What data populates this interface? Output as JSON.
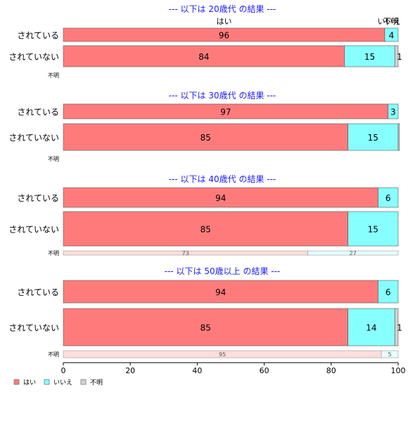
{
  "chart_data": {
    "type": "bar",
    "orientation": "horizontal",
    "stacked": true,
    "xlim": [
      0,
      100
    ],
    "xticks": [
      0,
      20,
      40,
      60,
      80,
      100
    ],
    "grid": false,
    "legend_position": "bottom-left",
    "categories": [
      "はい",
      "いいえ",
      "不明"
    ],
    "colors": {
      "はい": "#ff7b7b",
      "いいえ": "#88ffff",
      "不明": "#d3d3d3"
    },
    "legend": [
      {
        "label": "はい",
        "color": "#ff7b7b"
      },
      {
        "label": "いいえ",
        "color": "#88ffff"
      },
      {
        "label": "不明",
        "color": "#d3d3d3"
      }
    ],
    "column_headers": [
      "はい",
      "いいえ",
      "不明"
    ],
    "panels": [
      {
        "title": "--- 以下は 20歳代 の結果 ---",
        "rows": [
          {
            "label": "されている",
            "values": [
              96,
              4,
              0
            ],
            "labels": [
              "96",
              "4",
              ""
            ]
          },
          {
            "label": "されていない",
            "values": [
              84,
              15,
              1
            ],
            "labels": [
              "84",
              "15",
              "1"
            ]
          },
          {
            "label": "不明",
            "values": [
              0,
              0,
              0
            ],
            "labels": [
              "",
              "",
              ""
            ]
          }
        ]
      },
      {
        "title": "--- 以下は 30歳代 の結果 ---",
        "rows": [
          {
            "label": "されている",
            "values": [
              97,
              3,
              0
            ],
            "labels": [
              "97",
              "3",
              ""
            ]
          },
          {
            "label": "されていない",
            "values": [
              85,
              15,
              0.4
            ],
            "labels": [
              "85",
              "15",
              ""
            ]
          },
          {
            "label": "不明",
            "values": [
              0,
              0,
              0
            ],
            "labels": [
              "",
              "",
              ""
            ]
          }
        ]
      },
      {
        "title": "--- 以下は 40歳代 の結果 ---",
        "rows": [
          {
            "label": "されている",
            "values": [
              94,
              6,
              0
            ],
            "labels": [
              "94",
              "6",
              ""
            ]
          },
          {
            "label": "されていない",
            "values": [
              85,
              15,
              0
            ],
            "labels": [
              "85",
              "15",
              ""
            ]
          },
          {
            "label": "不明",
            "values": [
              73,
              27,
              0
            ],
            "labels": [
              "73",
              "27",
              ""
            ]
          }
        ]
      },
      {
        "title": "--- 以下は 50歳以上 の結果 ---",
        "rows": [
          {
            "label": "されている",
            "values": [
              94,
              6,
              0
            ],
            "labels": [
              "94",
              "6",
              ""
            ]
          },
          {
            "label": "されていない",
            "values": [
              85,
              14,
              1
            ],
            "labels": [
              "85",
              "14",
              "1"
            ]
          },
          {
            "label": "不明",
            "values": [
              95,
              5,
              0
            ],
            "labels": [
              "95",
              "5",
              ""
            ]
          }
        ]
      }
    ]
  }
}
